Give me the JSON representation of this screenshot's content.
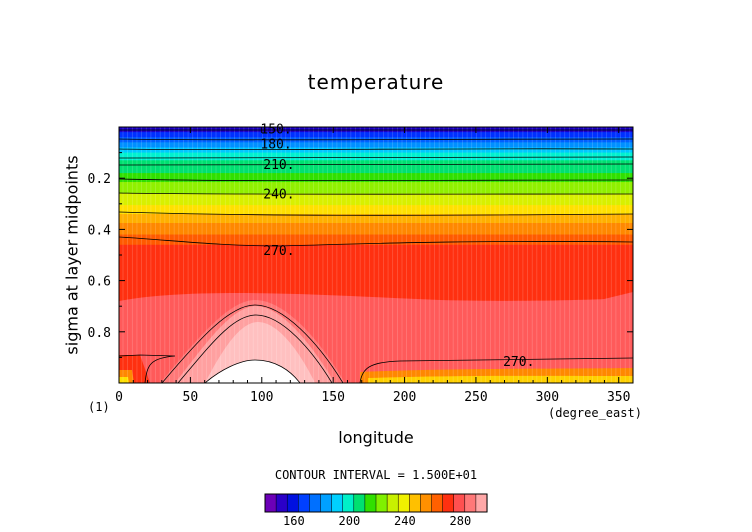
{
  "chart_data": {
    "type": "heatmap",
    "title": "temperature",
    "xlabel": "longitude",
    "ylabel": "sigma at layer midpoints",
    "x_unit": "(degree_east)",
    "scale_marker": "(1)",
    "xlim": [
      0,
      360
    ],
    "ylim": [
      0,
      1
    ],
    "y_inverted": true,
    "x_ticks": [
      "0",
      "50",
      "100",
      "150",
      "200",
      "250",
      "300",
      "350"
    ],
    "y_ticks": [
      "0.2",
      "0.4",
      "0.6",
      "0.8"
    ],
    "contour_interval_text": "CONTOUR INTERVAL = 1.500E+01",
    "contour_labels": [
      {
        "text": "150.",
        "x": 110,
        "y": 0.005
      },
      {
        "text": "180.",
        "x": 110,
        "y": 0.065
      },
      {
        "text": "210.",
        "x": 112,
        "y": 0.145
      },
      {
        "text": "240.",
        "x": 112,
        "y": 0.26
      },
      {
        "text": "270.",
        "x": 112,
        "y": 0.48
      },
      {
        "text": "270.",
        "x": 280,
        "y": 0.915
      }
    ],
    "colorbar_ticks": [
      "160",
      "200",
      "240",
      "280"
    ],
    "colorbar_colors": [
      "#6c00b8",
      "#2a00c8",
      "#0010e0",
      "#0040ff",
      "#0070ff",
      "#00a0ff",
      "#00d0ff",
      "#00f0c8",
      "#00e070",
      "#30e000",
      "#80f000",
      "#c8f000",
      "#f0f000",
      "#ffc000",
      "#ff9000",
      "#ff6000",
      "#ff3010",
      "#ff5050",
      "#ff7878",
      "#ffa8a8"
    ],
    "bands": [
      {
        "color": "#1a00c8",
        "top": 0.0,
        "bottom": 0.02
      },
      {
        "color": "#0030ff",
        "top": 0.02,
        "bottom": 0.04
      },
      {
        "color": "#0060ff",
        "top": 0.04,
        "bottom": 0.06
      },
      {
        "color": "#0090ff",
        "top": 0.06,
        "bottom": 0.08
      },
      {
        "color": "#00c8ff",
        "top": 0.08,
        "bottom": 0.1
      },
      {
        "color": "#00f0d0",
        "top": 0.1,
        "bottom": 0.13
      },
      {
        "color": "#00e070",
        "top": 0.13,
        "bottom": 0.18
      },
      {
        "color": "#30e000",
        "top": 0.18,
        "bottom": 0.215
      },
      {
        "color": "#90f000",
        "top": 0.215,
        "bottom": 0.26
      },
      {
        "color": "#d8f000",
        "top": 0.26,
        "bottom": 0.305
      },
      {
        "color": "#ffe000",
        "top": 0.305,
        "bottom": 0.34
      },
      {
        "color": "#ffb000",
        "top": 0.34,
        "bottom": 0.375
      },
      {
        "color": "#ff8800",
        "top": 0.375,
        "bottom": 0.42
      },
      {
        "color": "#ff5a00",
        "top": 0.42,
        "bottom": 0.46
      },
      {
        "color": "#ff3010",
        "top": 0.46,
        "bottom": 1.0
      }
    ]
  }
}
